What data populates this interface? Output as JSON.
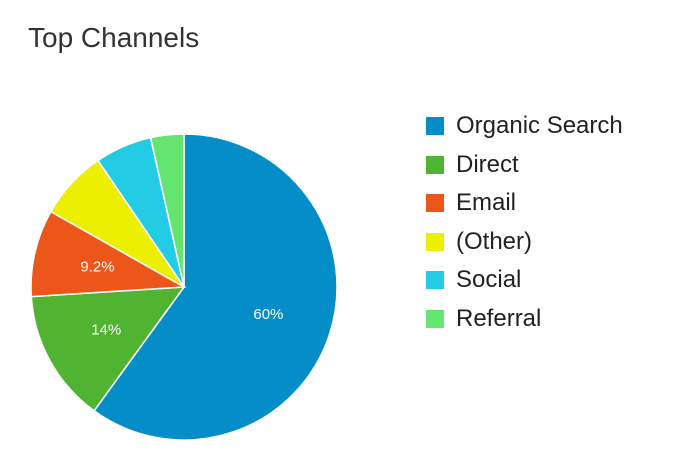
{
  "chart_data": {
    "type": "pie",
    "title": "Top Channels",
    "legend_position": "right",
    "slices": [
      {
        "name": "Organic Search",
        "value": 60,
        "label": "60%",
        "color": "#058dc7"
      },
      {
        "name": "Direct",
        "value": 14,
        "label": "14%",
        "color": "#50b432"
      },
      {
        "name": "Email",
        "value": 9.2,
        "label": "9.2%",
        "color": "#ed561b"
      },
      {
        "name": "(Other)",
        "value": 7.3,
        "label": "",
        "color": "#edef00"
      },
      {
        "name": "Social",
        "value": 6,
        "label": "",
        "color": "#24cbe5"
      },
      {
        "name": "Referral",
        "value": 3.5,
        "label": "",
        "color": "#64e572"
      }
    ]
  }
}
